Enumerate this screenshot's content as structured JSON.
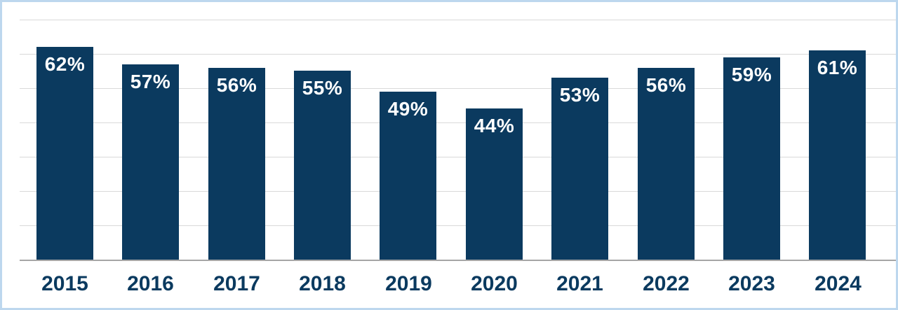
{
  "chart_data": {
    "type": "bar",
    "title": "",
    "xlabel": "",
    "ylabel": "",
    "categories": [
      "2015",
      "2016",
      "2017",
      "2018",
      "2019",
      "2020",
      "2021",
      "2022",
      "2023",
      "2024"
    ],
    "values": [
      62,
      57,
      56,
      55,
      49,
      44,
      53,
      56,
      59,
      61
    ],
    "bar_labels": [
      "62%",
      "57%",
      "56%",
      "55%",
      "49%",
      "44%",
      "53%",
      "56%",
      "59%",
      "61%"
    ],
    "ylim": [
      0,
      70
    ],
    "gridline_step": 10,
    "grid": true,
    "legend": false,
    "bar_label_position": "inside-top",
    "colors": {
      "bar": "#0B3A5F",
      "bar_label_text": "#FFFFFF",
      "axis_label_text": "#0B3A5F",
      "gridline": "#D9D9D9",
      "axis_line": "#A6A6A6",
      "border": "#BDD7EE",
      "background": "#FFFFFF"
    }
  }
}
